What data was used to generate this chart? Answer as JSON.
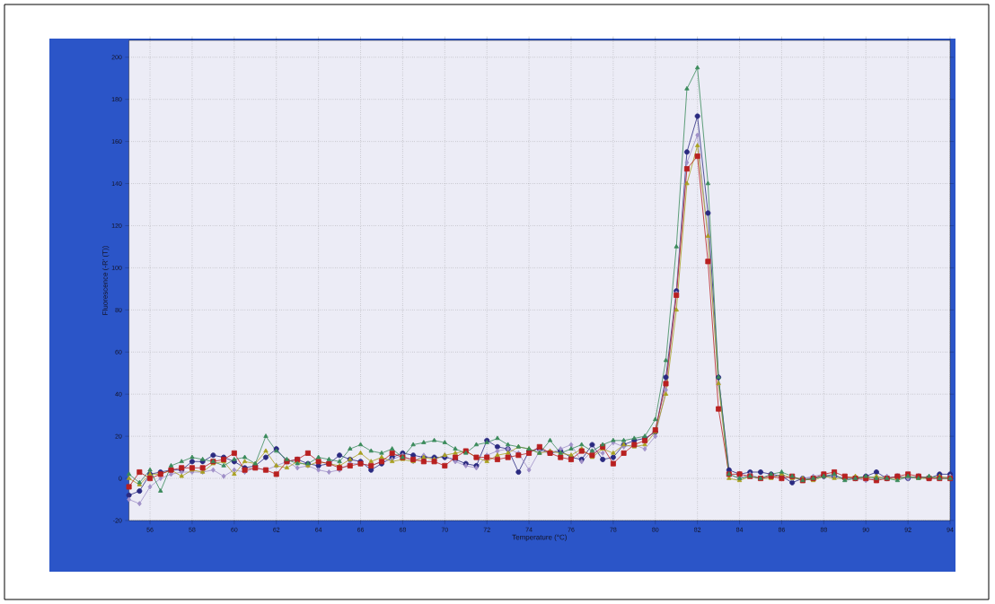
{
  "chart_data": {
    "type": "line",
    "xlabel": "Temperature (°C)",
    "ylabel": "Fluorescence (-R' (T))",
    "x": [
      55,
      55.5,
      56,
      56.5,
      57,
      57.5,
      58,
      58.5,
      59,
      59.5,
      60,
      60.5,
      61,
      61.5,
      62,
      62.5,
      63,
      63.5,
      64,
      64.5,
      65,
      65.5,
      66,
      66.5,
      67,
      67.5,
      68,
      68.5,
      69,
      69.5,
      70,
      70.5,
      71,
      71.5,
      72,
      72.5,
      73,
      73.5,
      74,
      74.5,
      75,
      75.5,
      76,
      76.5,
      77,
      77.5,
      78,
      78.5,
      79,
      79.5,
      80,
      80.5,
      81,
      81.5,
      82,
      82.5,
      83,
      83.5,
      84,
      84.5,
      85,
      85.5,
      86,
      86.5,
      87,
      87.5,
      88,
      88.5,
      89,
      89.5,
      90,
      90.5,
      91,
      91.5,
      92,
      92.5,
      93,
      93.5,
      94
    ],
    "xlim": [
      55,
      94
    ],
    "xticks": [
      56,
      58,
      60,
      62,
      64,
      66,
      68,
      70,
      72,
      74,
      76,
      78,
      80,
      82,
      84,
      86,
      88,
      90,
      92,
      94
    ],
    "ylim": [
      -20,
      208
    ],
    "yticks": [
      -20,
      0,
      20,
      40,
      60,
      80,
      100,
      120,
      140,
      160,
      180,
      200
    ],
    "grid": true,
    "line_style": "solid",
    "series": [
      {
        "color": "#2a2a80",
        "marker": "circle",
        "values": [
          -8,
          -6,
          2,
          3,
          4,
          4,
          8,
          8,
          11,
          10,
          8,
          5,
          6,
          10,
          14,
          8,
          9,
          7,
          6,
          7,
          11,
          9,
          8,
          4,
          7,
          10,
          12,
          11,
          10,
          10,
          10,
          9,
          7,
          6,
          18,
          15,
          14,
          3,
          13,
          14,
          12,
          13,
          10,
          9,
          16,
          9,
          10,
          16,
          18,
          19,
          22,
          48,
          89,
          155,
          172,
          126,
          48,
          4,
          2,
          3,
          3,
          2,
          1,
          -2,
          0,
          0,
          1,
          1,
          0,
          0,
          1,
          3,
          0,
          1,
          0,
          1,
          0,
          2,
          2
        ]
      },
      {
        "color": "#a090c8",
        "marker": "diamond",
        "values": [
          -10,
          -12,
          -4,
          0,
          2,
          3,
          3,
          3,
          4,
          1,
          4,
          3,
          5,
          4,
          6,
          8,
          5,
          6,
          4,
          3,
          4,
          7,
          7,
          6,
          8,
          9,
          11,
          8,
          11,
          9,
          11,
          8,
          6,
          5,
          11,
          13,
          14,
          12,
          4,
          13,
          12,
          14,
          16,
          8,
          13,
          12,
          17,
          15,
          16,
          14,
          20,
          42,
          88,
          150,
          163,
          115,
          45,
          2,
          0,
          2,
          0,
          1,
          1,
          0,
          0,
          1,
          2,
          1,
          0,
          0,
          -1,
          0,
          1,
          0,
          0,
          1,
          0,
          0,
          1
        ]
      },
      {
        "color": "#a8a020",
        "marker": "triangle",
        "values": [
          0,
          -3,
          2,
          2,
          4,
          1,
          4,
          3,
          7,
          8,
          2,
          8,
          7,
          13,
          6,
          5,
          8,
          6,
          8,
          7,
          6,
          9,
          12,
          8,
          10,
          8,
          9,
          8,
          10,
          9,
          11,
          12,
          13,
          10,
          8,
          11,
          12,
          15,
          14,
          12,
          13,
          12,
          11,
          14,
          10,
          14,
          12,
          16,
          15,
          16,
          22,
          40,
          80,
          140,
          158,
          115,
          45,
          0,
          -1,
          1,
          0,
          0,
          2,
          0,
          0,
          -1,
          1,
          0,
          0,
          1,
          0,
          1,
          0,
          0,
          1,
          0,
          0,
          1,
          0
        ]
      },
      {
        "color": "#b82020",
        "marker": "square",
        "values": [
          -4,
          3,
          0,
          2,
          4,
          5,
          5,
          5,
          8,
          9,
          12,
          4,
          5,
          4,
          2,
          8,
          9,
          12,
          8,
          7,
          5,
          6,
          7,
          6,
          8,
          12,
          10,
          9,
          8,
          8,
          6,
          10,
          13,
          10,
          10,
          9,
          10,
          11,
          12,
          15,
          12,
          10,
          9,
          13,
          11,
          15,
          7,
          12,
          16,
          18,
          23,
          45,
          87,
          147,
          153,
          103,
          33,
          2,
          2,
          1,
          0,
          1,
          0,
          1,
          -1,
          0,
          2,
          3,
          1,
          0,
          0,
          -1,
          0,
          1,
          2,
          1,
          0,
          0,
          0
        ]
      },
      {
        "color": "#3a8a5a",
        "marker": "triangle",
        "values": [
          2,
          -2,
          4,
          -6,
          6,
          8,
          10,
          9,
          8,
          6,
          9,
          10,
          7,
          20,
          13,
          9,
          7,
          7,
          10,
          9,
          8,
          14,
          16,
          13,
          12,
          14,
          10,
          16,
          17,
          18,
          17,
          14,
          12,
          16,
          17,
          19,
          16,
          15,
          14,
          12,
          18,
          12,
          14,
          16,
          13,
          16,
          18,
          18,
          19,
          20,
          28,
          56,
          110,
          185,
          195,
          140,
          48,
          2,
          0,
          1,
          0,
          2,
          3,
          1,
          -1,
          0,
          1,
          2,
          -1,
          0,
          1,
          0,
          0,
          -1,
          1,
          0,
          1,
          0,
          0
        ]
      }
    ]
  }
}
